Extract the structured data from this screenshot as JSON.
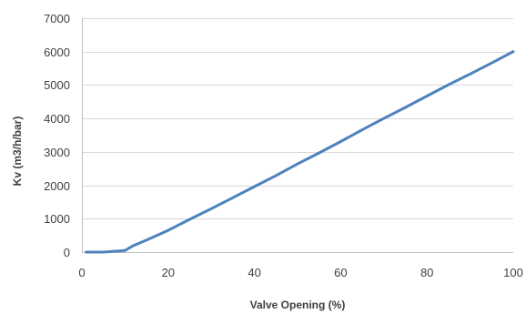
{
  "chart_data": {
    "type": "line",
    "title": "",
    "xlabel": "Valve Opening (%)",
    "ylabel": "Kv (m3/h/bar)",
    "xlim": [
      0,
      100
    ],
    "ylim": [
      0,
      7000
    ],
    "x_ticks": [
      0,
      20,
      40,
      60,
      80,
      100
    ],
    "y_ticks": [
      0,
      1000,
      2000,
      3000,
      4000,
      5000,
      6000,
      7000
    ],
    "grid": true,
    "legend": "none",
    "series": [
      {
        "color": "#4f81bd",
        "x": [
          1,
          5,
          10,
          12,
          15,
          20,
          25,
          30,
          35,
          40,
          45,
          50,
          55,
          60,
          65,
          70,
          75,
          80,
          85,
          90,
          95,
          100
        ],
        "y": [
          0,
          0,
          50,
          200,
          360,
          650,
          980,
          1300,
          1630,
          1960,
          2290,
          2640,
          2970,
          3310,
          3660,
          4000,
          4330,
          4670,
          5010,
          5330,
          5660,
          6000
        ]
      }
    ]
  }
}
